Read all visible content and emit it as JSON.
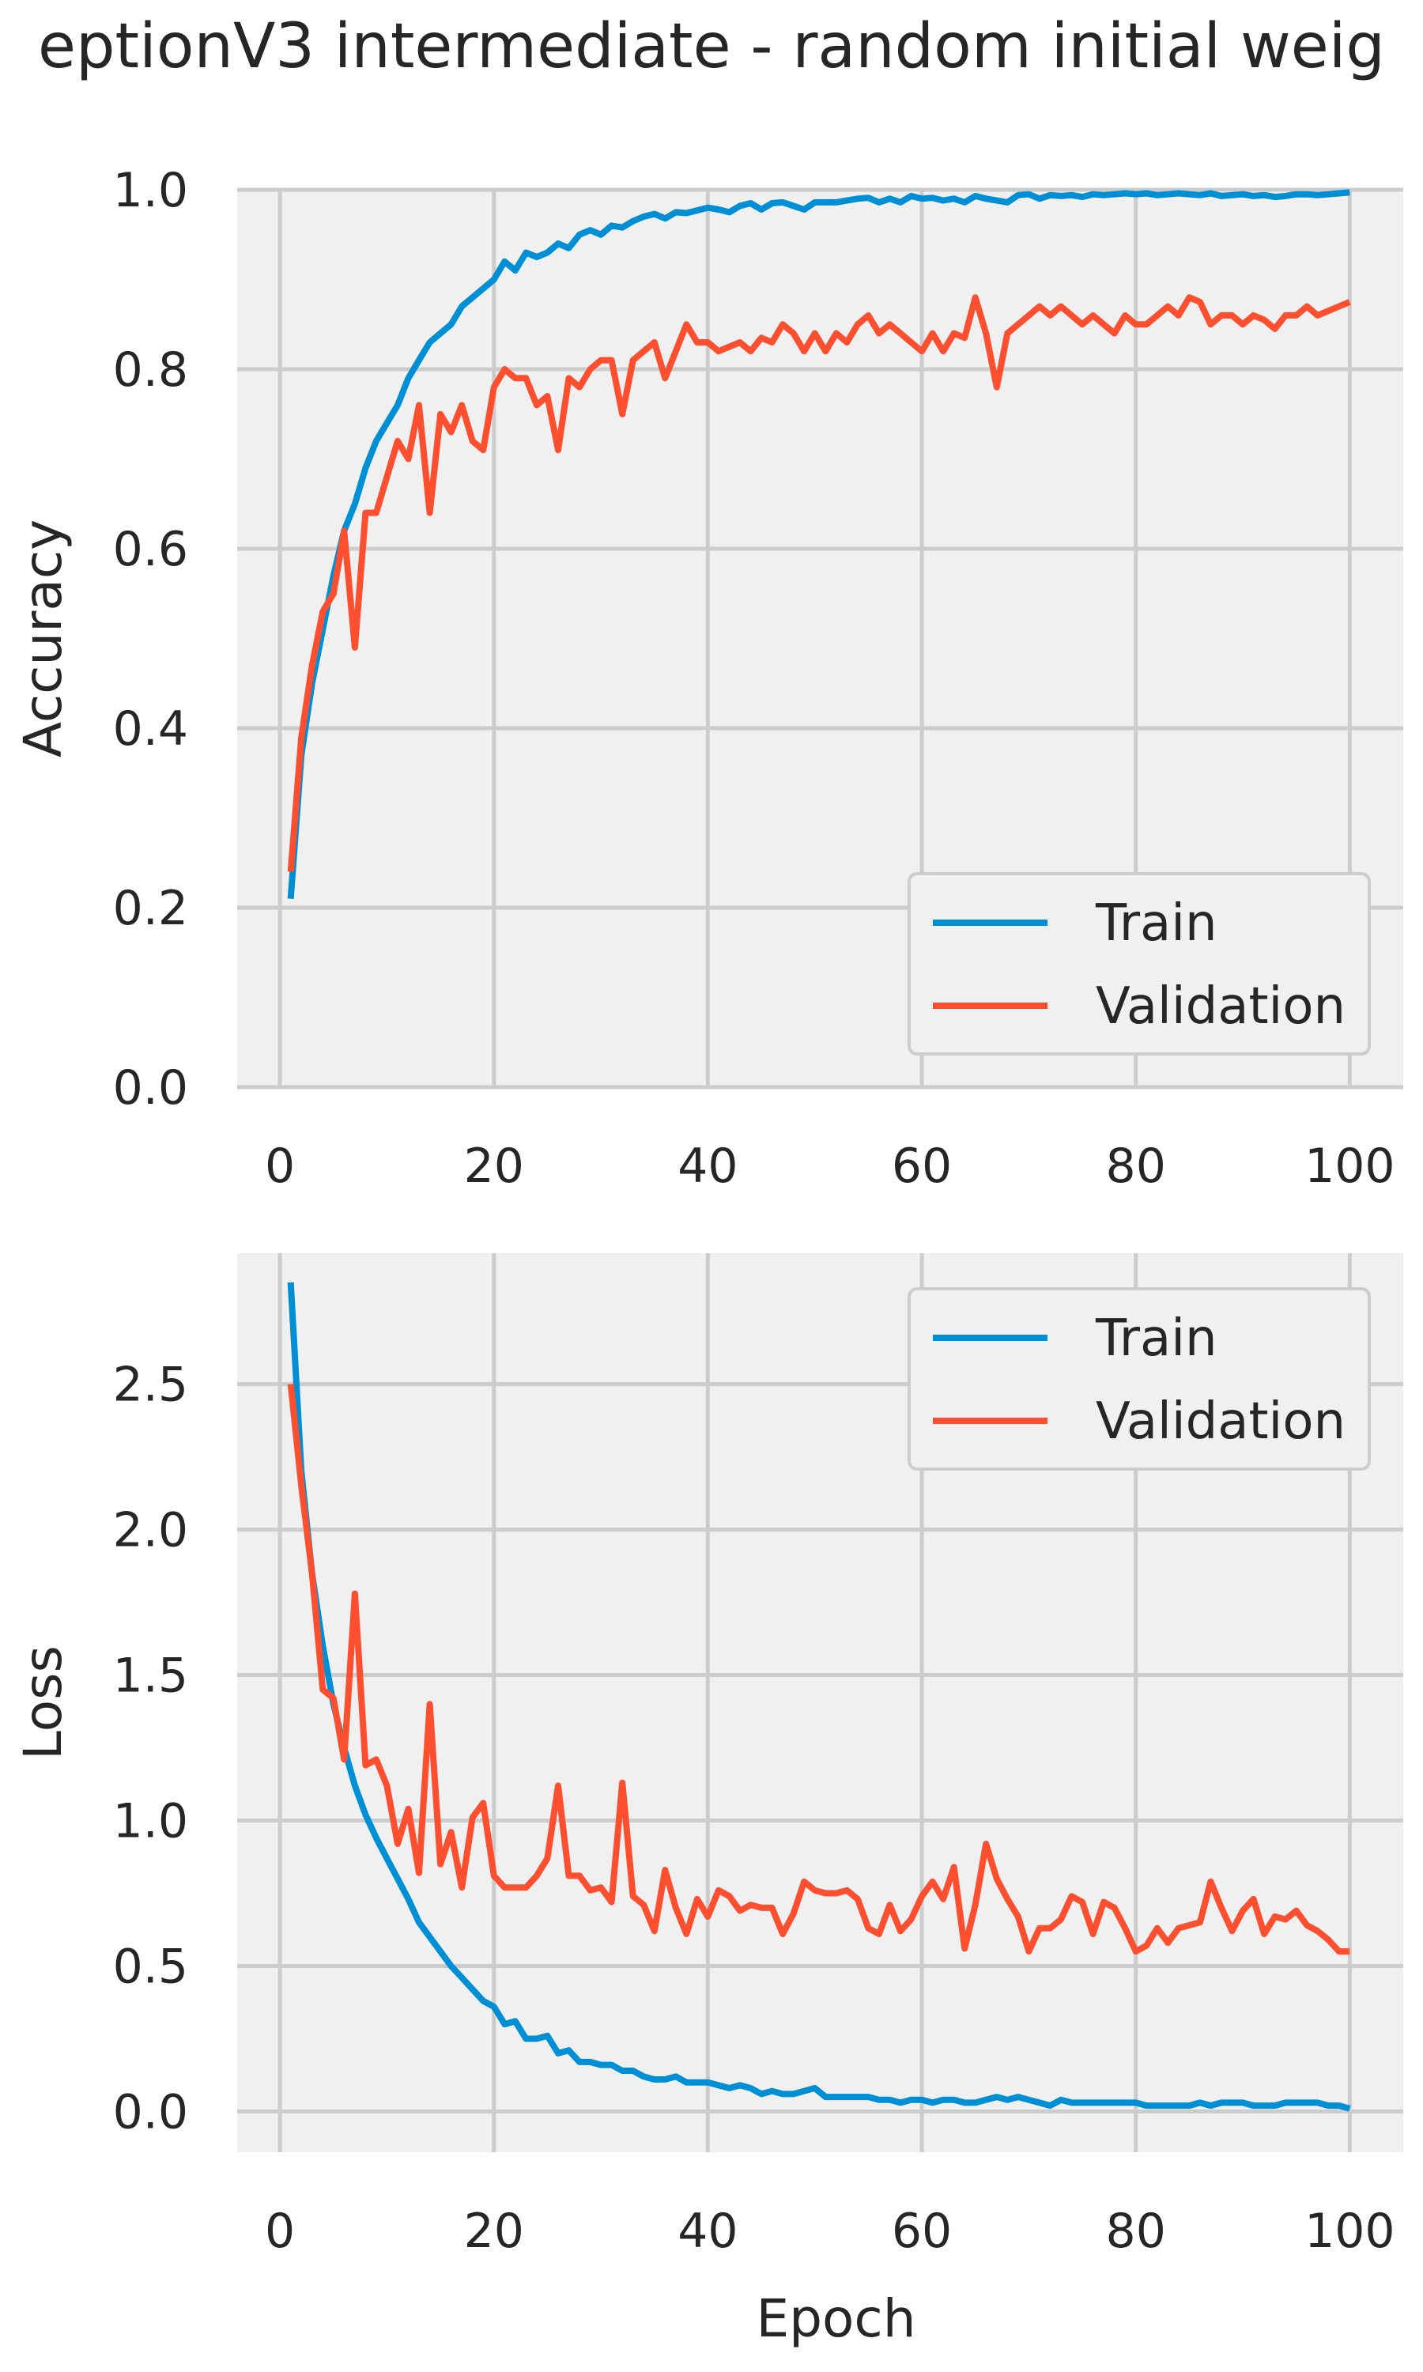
{
  "title": "eptionV3 intermediate - random initial weig",
  "colors": {
    "train": "#008fd5",
    "validation": "#fc4f30",
    "plot_bg": "#f0f0f0",
    "grid": "#cccccc",
    "text": "#262626"
  },
  "chart_data": [
    {
      "type": "line",
      "ylabel": "Accuracy",
      "xlabel": "",
      "xlim": [
        -4,
        105
      ],
      "ylim": [
        0.0,
        1.0
      ],
      "x_ticks": [
        0,
        20,
        40,
        60,
        80,
        100
      ],
      "x_tick_labels": [
        "0",
        "20",
        "40",
        "60",
        "80",
        "100"
      ],
      "y_ticks": [
        0.0,
        0.2,
        0.4,
        0.6,
        0.8,
        1.0
      ],
      "y_tick_labels": [
        "0.0",
        "0.2",
        "0.4",
        "0.6",
        "0.8",
        "1.0"
      ],
      "grid": true,
      "legend_position": "lower-right",
      "legend": [
        "Train",
        "Validation"
      ],
      "x": [
        1,
        2,
        3,
        4,
        5,
        6,
        7,
        8,
        9,
        10,
        11,
        12,
        13,
        14,
        15,
        16,
        17,
        18,
        19,
        20,
        21,
        22,
        23,
        24,
        25,
        26,
        27,
        28,
        29,
        30,
        31,
        32,
        33,
        34,
        35,
        36,
        37,
        38,
        39,
        40,
        41,
        42,
        43,
        44,
        45,
        46,
        47,
        48,
        49,
        50,
        51,
        52,
        53,
        54,
        55,
        56,
        57,
        58,
        59,
        60,
        61,
        62,
        63,
        64,
        65,
        66,
        67,
        68,
        69,
        70,
        71,
        72,
        73,
        74,
        75,
        76,
        77,
        78,
        79,
        80,
        81,
        82,
        83,
        84,
        85,
        86,
        87,
        88,
        89,
        90,
        91,
        92,
        93,
        94,
        95,
        96,
        97,
        98,
        99,
        100
      ],
      "series": [
        {
          "name": "Train",
          "values": [
            0.21,
            0.37,
            0.45,
            0.51,
            0.57,
            0.62,
            0.65,
            0.69,
            0.72,
            0.74,
            0.76,
            0.79,
            0.81,
            0.83,
            0.84,
            0.85,
            0.87,
            0.88,
            0.89,
            0.9,
            0.92,
            0.91,
            0.93,
            0.925,
            0.93,
            0.94,
            0.935,
            0.95,
            0.955,
            0.95,
            0.96,
            0.958,
            0.965,
            0.97,
            0.973,
            0.968,
            0.975,
            0.974,
            0.977,
            0.98,
            0.978,
            0.975,
            0.982,
            0.985,
            0.978,
            0.985,
            0.986,
            0.982,
            0.978,
            0.986,
            0.986,
            0.986,
            0.988,
            0.99,
            0.991,
            0.986,
            0.99,
            0.986,
            0.993,
            0.99,
            0.991,
            0.988,
            0.99,
            0.986,
            0.993,
            0.99,
            0.988,
            0.986,
            0.994,
            0.995,
            0.99,
            0.994,
            0.993,
            0.994,
            0.992,
            0.995,
            0.994,
            0.995,
            0.996,
            0.995,
            0.996,
            0.994,
            0.995,
            0.996,
            0.995,
            0.994,
            0.996,
            0.993,
            0.994,
            0.995,
            0.993,
            0.994,
            0.992,
            0.993,
            0.995,
            0.995,
            0.994,
            0.995,
            0.996,
            0.997
          ]
        },
        {
          "name": "Validation",
          "values": [
            0.24,
            0.39,
            0.47,
            0.53,
            0.55,
            0.62,
            0.49,
            0.64,
            0.64,
            0.68,
            0.72,
            0.7,
            0.76,
            0.64,
            0.75,
            0.73,
            0.76,
            0.72,
            0.71,
            0.78,
            0.8,
            0.79,
            0.79,
            0.76,
            0.77,
            0.71,
            0.79,
            0.78,
            0.8,
            0.81,
            0.81,
            0.75,
            0.81,
            0.82,
            0.83,
            0.79,
            0.82,
            0.85,
            0.83,
            0.83,
            0.82,
            0.825,
            0.83,
            0.82,
            0.835,
            0.83,
            0.85,
            0.84,
            0.82,
            0.84,
            0.82,
            0.84,
            0.83,
            0.85,
            0.86,
            0.84,
            0.85,
            0.84,
            0.83,
            0.82,
            0.84,
            0.82,
            0.84,
            0.835,
            0.88,
            0.84,
            0.78,
            0.84,
            0.85,
            0.86,
            0.87,
            0.86,
            0.87,
            0.86,
            0.85,
            0.86,
            0.85,
            0.84,
            0.86,
            0.85,
            0.85,
            0.86,
            0.87,
            0.86,
            0.88,
            0.875,
            0.85,
            0.86,
            0.86,
            0.85,
            0.86,
            0.855,
            0.845,
            0.86,
            0.86,
            0.87,
            0.86,
            0.865,
            0.87,
            0.875
          ]
        }
      ]
    },
    {
      "type": "line",
      "ylabel": "Loss",
      "xlabel": "Epoch",
      "xlim": [
        -4,
        105
      ],
      "ylim": [
        -0.14,
        2.95
      ],
      "x_ticks": [
        0,
        20,
        40,
        60,
        80,
        100
      ],
      "x_tick_labels": [
        "0",
        "20",
        "40",
        "60",
        "80",
        "100"
      ],
      "y_ticks": [
        0.0,
        0.5,
        1.0,
        1.5,
        2.0,
        2.5
      ],
      "y_tick_labels": [
        "0.0",
        "0.5",
        "1.0",
        "1.5",
        "2.0",
        "2.5"
      ],
      "grid": true,
      "legend_position": "upper-right",
      "legend": [
        "Train",
        "Validation"
      ],
      "x": [
        1,
        2,
        3,
        4,
        5,
        6,
        7,
        8,
        9,
        10,
        11,
        12,
        13,
        14,
        15,
        16,
        17,
        18,
        19,
        20,
        21,
        22,
        23,
        24,
        25,
        26,
        27,
        28,
        29,
        30,
        31,
        32,
        33,
        34,
        35,
        36,
        37,
        38,
        39,
        40,
        41,
        42,
        43,
        44,
        45,
        46,
        47,
        48,
        49,
        50,
        51,
        52,
        53,
        54,
        55,
        56,
        57,
        58,
        59,
        60,
        61,
        62,
        63,
        64,
        65,
        66,
        67,
        68,
        69,
        70,
        71,
        72,
        73,
        74,
        75,
        76,
        77,
        78,
        79,
        80,
        81,
        82,
        83,
        84,
        85,
        86,
        87,
        88,
        89,
        90,
        91,
        92,
        93,
        94,
        95,
        96,
        97,
        98,
        99,
        100
      ],
      "series": [
        {
          "name": "Train",
          "values": [
            2.85,
            2.2,
            1.85,
            1.6,
            1.4,
            1.25,
            1.12,
            1.02,
            0.94,
            0.87,
            0.8,
            0.73,
            0.65,
            0.6,
            0.55,
            0.5,
            0.46,
            0.42,
            0.38,
            0.36,
            0.3,
            0.31,
            0.25,
            0.25,
            0.26,
            0.2,
            0.21,
            0.17,
            0.17,
            0.16,
            0.16,
            0.14,
            0.14,
            0.12,
            0.11,
            0.11,
            0.12,
            0.1,
            0.1,
            0.1,
            0.09,
            0.08,
            0.09,
            0.08,
            0.06,
            0.07,
            0.06,
            0.06,
            0.07,
            0.08,
            0.05,
            0.05,
            0.05,
            0.05,
            0.05,
            0.04,
            0.04,
            0.03,
            0.04,
            0.04,
            0.03,
            0.04,
            0.04,
            0.03,
            0.03,
            0.04,
            0.05,
            0.04,
            0.05,
            0.04,
            0.03,
            0.02,
            0.04,
            0.03,
            0.03,
            0.03,
            0.03,
            0.03,
            0.03,
            0.03,
            0.02,
            0.02,
            0.02,
            0.02,
            0.02,
            0.03,
            0.02,
            0.03,
            0.03,
            0.03,
            0.02,
            0.02,
            0.02,
            0.03,
            0.03,
            0.03,
            0.03,
            0.02,
            0.02,
            0.01
          ]
        },
        {
          "name": "Validation",
          "values": [
            2.5,
            2.15,
            1.85,
            1.45,
            1.42,
            1.21,
            1.78,
            1.19,
            1.21,
            1.12,
            0.92,
            1.04,
            0.82,
            1.4,
            0.85,
            0.96,
            0.77,
            1.01,
            1.06,
            0.81,
            0.77,
            0.77,
            0.77,
            0.81,
            0.87,
            1.12,
            0.81,
            0.81,
            0.76,
            0.77,
            0.72,
            1.13,
            0.74,
            0.71,
            0.62,
            0.83,
            0.7,
            0.61,
            0.73,
            0.67,
            0.76,
            0.74,
            0.69,
            0.71,
            0.7,
            0.7,
            0.61,
            0.68,
            0.79,
            0.76,
            0.75,
            0.75,
            0.76,
            0.73,
            0.63,
            0.61,
            0.71,
            0.62,
            0.66,
            0.74,
            0.79,
            0.73,
            0.84,
            0.56,
            0.71,
            0.92,
            0.8,
            0.73,
            0.67,
            0.55,
            0.63,
            0.63,
            0.66,
            0.74,
            0.72,
            0.61,
            0.72,
            0.7,
            0.63,
            0.55,
            0.57,
            0.63,
            0.58,
            0.63,
            0.64,
            0.65,
            0.79,
            0.7,
            0.62,
            0.69,
            0.73,
            0.61,
            0.67,
            0.66,
            0.69,
            0.64,
            0.62,
            0.59,
            0.55,
            0.55
          ]
        }
      ]
    }
  ]
}
